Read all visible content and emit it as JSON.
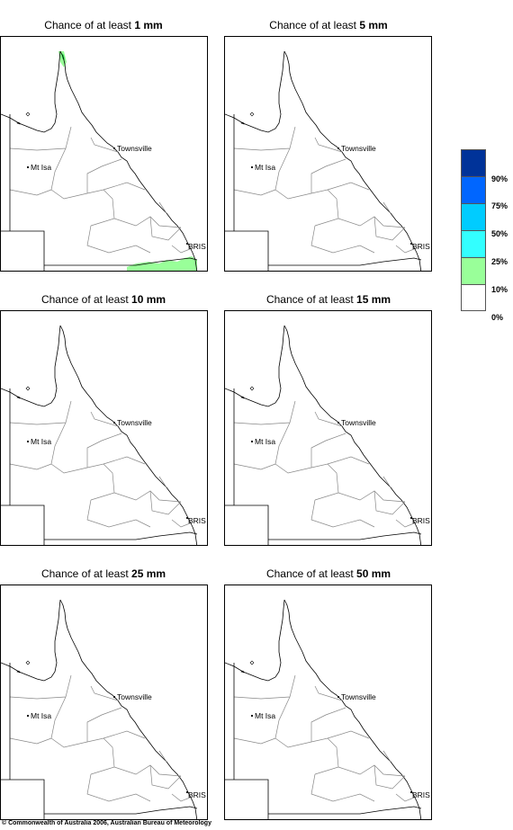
{
  "panels": [
    {
      "title_prefix": "Chance of at least ",
      "title_amount": "1 mm",
      "has_fill": true
    },
    {
      "title_prefix": "Chance of at least ",
      "title_amount": "5 mm",
      "has_fill": false
    },
    {
      "title_prefix": "Chance of at least ",
      "title_amount": "10 mm",
      "has_fill": false
    },
    {
      "title_prefix": "Chance of at least ",
      "title_amount": "15 mm",
      "has_fill": false
    },
    {
      "title_prefix": "Chance of at least ",
      "title_amount": "25 mm",
      "has_fill": false
    },
    {
      "title_prefix": "Chance of at least ",
      "title_amount": "50 mm",
      "has_fill": false
    }
  ],
  "places": {
    "townsville": "Townsville",
    "mt_isa": "Mt Isa",
    "brisbane": "BRIS"
  },
  "legend": {
    "colors": [
      "#003399",
      "#0066ff",
      "#00ccff",
      "#33ffff",
      "#99ff99",
      "#ffffff"
    ],
    "labels": [
      "90%",
      "75%",
      "50%",
      "25%",
      "10%",
      "0%"
    ]
  },
  "colors": {
    "fill_low": "#99ff99",
    "fill_mid": "#33dd55"
  },
  "footer": "© Commonwealth of Australia 2006, Australian Bureau of Meteorology"
}
